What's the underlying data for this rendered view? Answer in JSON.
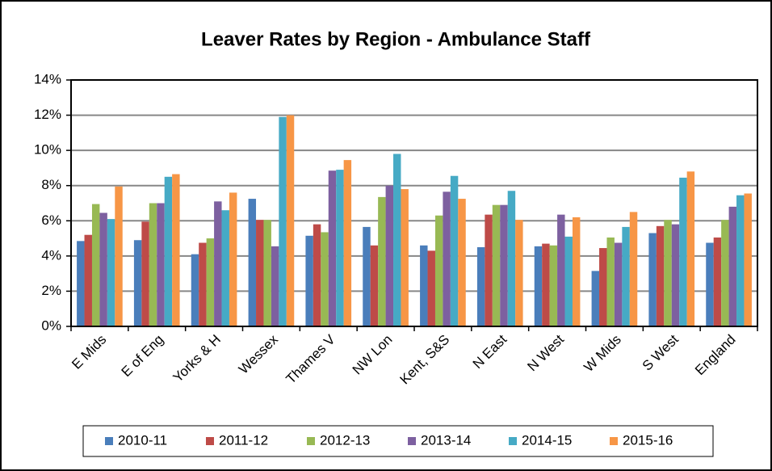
{
  "chart_data": {
    "type": "bar",
    "title": "Leaver Rates by Region - Ambulance Staff",
    "categories": [
      "E Mids",
      "E of Eng",
      "Yorks & H",
      "Wessex",
      "Thames V",
      "NW Lon",
      "Kent, S&S",
      "N East",
      "N West",
      "W Mids",
      "S West",
      "England"
    ],
    "series": [
      {
        "name": "2010-11",
        "color": "#4a7ebb",
        "values": [
          4.85,
          4.9,
          4.1,
          7.25,
          5.15,
          5.65,
          4.6,
          4.5,
          4.55,
          3.15,
          5.3,
          4.75
        ]
      },
      {
        "name": "2011-12",
        "color": "#be4b48",
        "values": [
          5.2,
          5.95,
          4.75,
          6.05,
          5.8,
          4.6,
          4.3,
          6.35,
          4.7,
          4.45,
          5.7,
          5.05
        ]
      },
      {
        "name": "2012-13",
        "color": "#98b954",
        "values": [
          6.95,
          7.0,
          5.0,
          6.05,
          5.35,
          7.35,
          6.3,
          6.9,
          4.6,
          5.05,
          6.05,
          6.05
        ]
      },
      {
        "name": "2013-14",
        "color": "#7d60a0",
        "values": [
          6.45,
          7.0,
          7.1,
          4.55,
          8.85,
          8.0,
          7.65,
          6.9,
          6.35,
          4.75,
          5.8,
          6.8
        ]
      },
      {
        "name": "2014-15",
        "color": "#46aac5",
        "values": [
          6.1,
          8.5,
          6.6,
          11.9,
          8.9,
          9.8,
          8.55,
          7.7,
          5.1,
          5.65,
          8.45,
          7.45
        ]
      },
      {
        "name": "2015-16",
        "color": "#f79646",
        "values": [
          7.95,
          8.65,
          7.6,
          12.0,
          9.45,
          7.8,
          7.25,
          6.05,
          6.2,
          6.5,
          8.8,
          7.55
        ]
      }
    ],
    "ylim": [
      0,
      14
    ],
    "yticks": [
      {
        "value": 0,
        "label": "0%"
      },
      {
        "value": 2,
        "label": "2%"
      },
      {
        "value": 4,
        "label": "4%"
      },
      {
        "value": 6,
        "label": "6%"
      },
      {
        "value": 8,
        "label": "8%"
      },
      {
        "value": 10,
        "label": "10%"
      },
      {
        "value": 12,
        "label": "12%"
      },
      {
        "value": 14,
        "label": "14%"
      }
    ],
    "grid": true,
    "legend": "bottom"
  }
}
